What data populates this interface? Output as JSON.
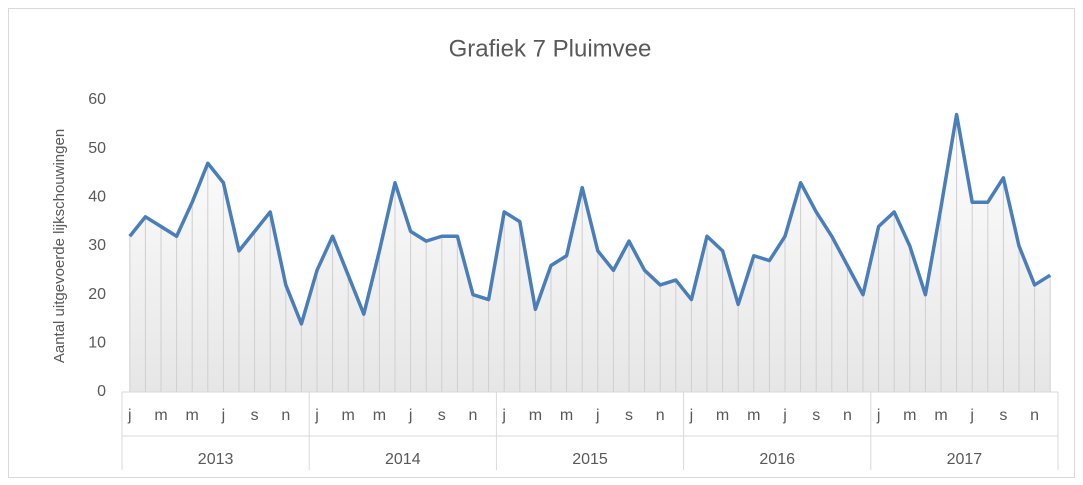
{
  "chart_data": {
    "type": "line",
    "title": "Grafiek 7 Pluimvee",
    "y_label": "Aantal uitgevoerde lijkschouwingen",
    "categories": [
      "j",
      null,
      "m",
      null,
      "m",
      null,
      "j",
      null,
      "s",
      null,
      "n",
      null,
      "j",
      null,
      "m",
      null,
      "m",
      null,
      "j",
      null,
      "s",
      null,
      "n",
      null,
      "j",
      null,
      "m",
      null,
      "m",
      null,
      "j",
      null,
      "s",
      null,
      "n",
      null,
      "j",
      null,
      "m",
      null,
      "m",
      null,
      "j",
      null,
      "s",
      null,
      "n",
      null,
      "j",
      null,
      "m",
      null,
      "m",
      null,
      "j",
      null,
      "s",
      null,
      "n",
      null
    ],
    "groups": [
      "2013",
      "2014",
      "2015",
      "2016",
      "2017"
    ],
    "series": [
      {
        "color": "#4a7ebb",
        "values": [
          32,
          36,
          34,
          32,
          39,
          47,
          43,
          29,
          33,
          37,
          22,
          14,
          25,
          32,
          24,
          16,
          29,
          43,
          33,
          31,
          32,
          32,
          20,
          19,
          37,
          35,
          17,
          26,
          28,
          42,
          29,
          25,
          31,
          25,
          22,
          23,
          19,
          32,
          29,
          18,
          28,
          27,
          32,
          43,
          37,
          32,
          26,
          20,
          34,
          37,
          30,
          20,
          38,
          57,
          39,
          39,
          44,
          30,
          22,
          24
        ]
      }
    ],
    "ylim": [
      0,
      60
    ],
    "yticks": [
      0,
      10,
      20,
      30,
      40,
      50,
      60
    ],
    "drop_lines": true
  }
}
